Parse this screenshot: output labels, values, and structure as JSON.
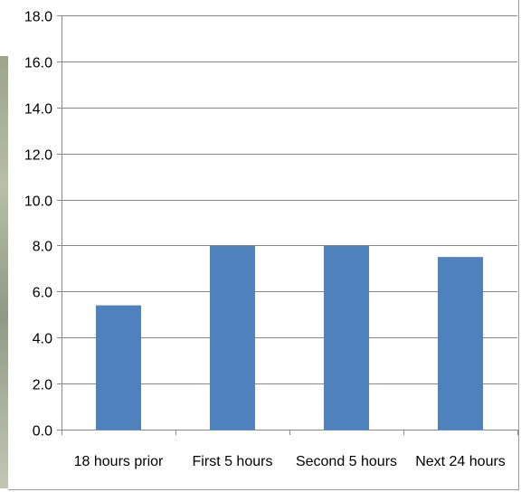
{
  "chart_data": {
    "type": "bar",
    "categories": [
      "18 hours prior",
      "First 5 hours",
      "Second 5 hours",
      "Next 24 hours"
    ],
    "series": [
      {
        "values": [
          5.4,
          8.0,
          8.0,
          7.5
        ],
        "color": "#4f81bd"
      }
    ],
    "ylim": [
      0,
      18
    ],
    "yticks": [
      "0.0",
      "2.0",
      "4.0",
      "6.0",
      "8.0",
      "10.0",
      "12.0",
      "14.0",
      "16.0",
      "18.0"
    ],
    "grid": true,
    "gridline_color": "#888888",
    "legend": "none",
    "title": "",
    "xlabel": "",
    "ylabel": ""
  }
}
